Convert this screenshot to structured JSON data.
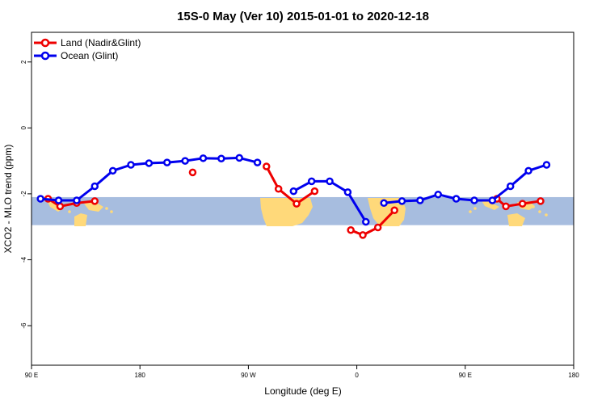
{
  "chart_data": {
    "type": "line",
    "title": "15S-0 May (Ver 10)   2015-01-01 to 2020-12-18",
    "xlabel": "Longitude (deg E)",
    "ylabel": "XCO2 - MLO trend (ppm)",
    "xlim": [
      90,
      450
    ],
    "ylim": [
      -7.2,
      2.9
    ],
    "x_ticks": [
      90,
      162,
      234,
      306,
      378,
      450
    ],
    "x_tick_labels": [
      "90 E",
      "180",
      "90 W",
      "0",
      "90 E",
      "180"
    ],
    "y_ticks": [
      -6,
      -4,
      -2,
      0,
      2
    ],
    "y_tick_labels": [
      "-6",
      "-4",
      "-2",
      "0",
      "2"
    ],
    "band_range": [
      -2.95,
      -2.1
    ],
    "legend": {
      "position": "top-left",
      "entries": [
        "Land (Nadir&Glint)",
        "Ocean (Glint)"
      ]
    },
    "colors": {
      "land": "#ee0000",
      "ocean": "#0000ee",
      "band": "#a7bddf",
      "landmass": "#ffd97a"
    },
    "series": [
      {
        "name": "Land (Nadir&Glint)",
        "segments": [
          [
            [
              101,
              -2.15
            ],
            [
              109,
              -2.38
            ],
            [
              120,
              -2.28
            ],
            [
              132,
              -2.22
            ]
          ],
          [
            [
              197,
              -1.35
            ]
          ],
          [
            [
              246,
              -1.17
            ],
            [
              254,
              -1.85
            ],
            [
              266,
              -2.3
            ],
            [
              278,
              -1.92
            ]
          ],
          [
            [
              302,
              -3.1
            ],
            [
              310,
              -3.25
            ],
            [
              320,
              -3.02
            ],
            [
              331,
              -2.5
            ]
          ],
          [
            [
              399,
              -2.15
            ],
            [
              405,
              -2.38
            ],
            [
              416,
              -2.3
            ],
            [
              428,
              -2.22
            ]
          ]
        ]
      },
      {
        "name": "Ocean (Glint)",
        "segments": [
          [
            [
              96,
              -2.15
            ],
            [
              108,
              -2.2
            ],
            [
              120,
              -2.2
            ],
            [
              132,
              -1.77
            ],
            [
              144,
              -1.3
            ],
            [
              156,
              -1.12
            ],
            [
              168,
              -1.07
            ],
            [
              180,
              -1.05
            ],
            [
              192,
              -1.0
            ],
            [
              204,
              -0.92
            ],
            [
              216,
              -0.93
            ],
            [
              228,
              -0.91
            ],
            [
              240,
              -1.05
            ]
          ],
          [
            [
              264,
              -1.92
            ],
            [
              276,
              -1.62
            ],
            [
              288,
              -1.62
            ],
            [
              300,
              -1.95
            ],
            [
              312,
              -2.85
            ]
          ],
          [
            [
              324,
              -2.28
            ],
            [
              336,
              -2.22
            ],
            [
              348,
              -2.2
            ],
            [
              360,
              -2.02
            ],
            [
              372,
              -2.15
            ],
            [
              384,
              -2.2
            ],
            [
              396,
              -2.2
            ],
            [
              408,
              -1.77
            ],
            [
              420,
              -1.3
            ],
            [
              432,
              -1.12
            ]
          ]
        ]
      }
    ]
  }
}
